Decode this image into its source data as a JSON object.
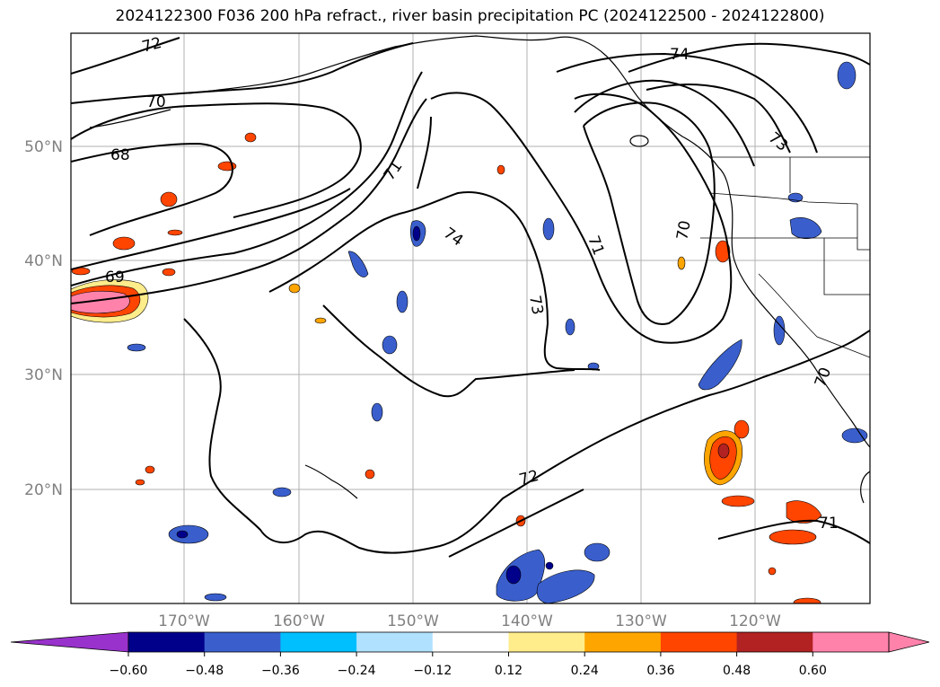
{
  "title": "2024122300 F036 200 hPa refract., river basin precipitation PC (2024122500 - 2024122800)",
  "lat_labels": [
    "50°N",
    "40°N",
    "30°N",
    "20°N"
  ],
  "lon_labels": [
    "170°W",
    "160°W",
    "150°W",
    "140°W",
    "130°W",
    "120°W"
  ],
  "contour_labels": [
    "72",
    "70",
    "68",
    "69",
    "71",
    "74",
    "73",
    "71",
    "70",
    "74",
    "73",
    "72",
    "71",
    "70"
  ],
  "colorbar": {
    "ticks": [
      "−0.60",
      "−0.48",
      "−0.36",
      "−0.24",
      "−0.12",
      "0.12",
      "0.24",
      "0.36",
      "0.48",
      "0.60"
    ],
    "colors": [
      "#9932cc",
      "#00008b",
      "#3a5fcd",
      "#00bfff",
      "#b0e2ff",
      "#ffffff",
      "#ffec8b",
      "#ffa500",
      "#ff4500",
      "#b22222",
      "#ff82ab",
      "#ff82ab"
    ]
  }
}
